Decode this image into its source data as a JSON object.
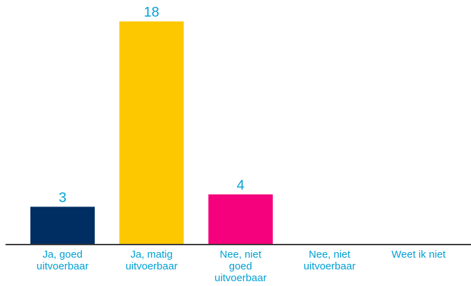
{
  "chart_data": {
    "type": "bar",
    "categories": [
      [
        "Ja, goed",
        "uitvoerbaar"
      ],
      [
        "Ja, matig",
        "uitvoerbaar"
      ],
      [
        "Nee, niet",
        "goed",
        "uitvoerbaar"
      ],
      [
        "Nee, niet",
        "uitvoerbaar"
      ],
      [
        "Weet ik niet"
      ]
    ],
    "values": [
      3,
      18,
      4,
      0,
      0
    ],
    "data_labels": [
      "3",
      "18",
      "4",
      "",
      ""
    ],
    "colors": [
      "#002d62",
      "#fdc800",
      "#f5007d",
      "#002d62",
      "#002d62"
    ],
    "label_color": "#00a0d6",
    "axis_color": "#3a3a3a",
    "ylim": [
      0,
      18
    ],
    "grid": false,
    "legend": "none"
  }
}
